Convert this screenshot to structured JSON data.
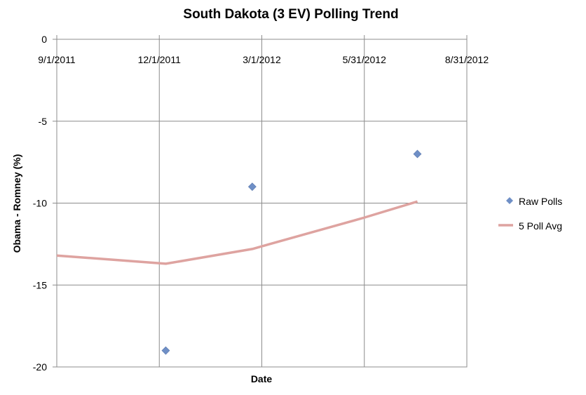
{
  "chart_data": {
    "type": "scatter",
    "title": "South Dakota (3 EV) Polling Trend",
    "xlabel": "Date",
    "ylabel": "Obama - Romney (%)",
    "x_ticks": [
      "9/1/2011",
      "12/1/2011",
      "3/1/2012",
      "5/31/2012",
      "8/31/2012"
    ],
    "xlim": [
      "2011-09-01",
      "2012-08-31"
    ],
    "ylim": [
      -20,
      0
    ],
    "y_ticks": [
      0,
      -5,
      -10,
      -15,
      -20
    ],
    "grid": true,
    "legend_position": "right",
    "series": [
      {
        "name": "Raw Polls",
        "kind": "scatter",
        "marker": "diamond",
        "color": "#6f8fc6",
        "points": [
          {
            "x": "2011-12-07",
            "y": -19
          },
          {
            "x": "2012-02-22",
            "y": -9
          },
          {
            "x": "2012-07-18",
            "y": -7
          }
        ]
      },
      {
        "name": "5 Poll Avg",
        "kind": "line",
        "color": "#dea3a0",
        "points": [
          {
            "x": "2011-09-01",
            "y": -13.2
          },
          {
            "x": "2011-12-07",
            "y": -13.7
          },
          {
            "x": "2012-02-22",
            "y": -12.8
          },
          {
            "x": "2012-05-31",
            "y": -10.9
          },
          {
            "x": "2012-07-18",
            "y": -9.9
          }
        ]
      }
    ]
  }
}
